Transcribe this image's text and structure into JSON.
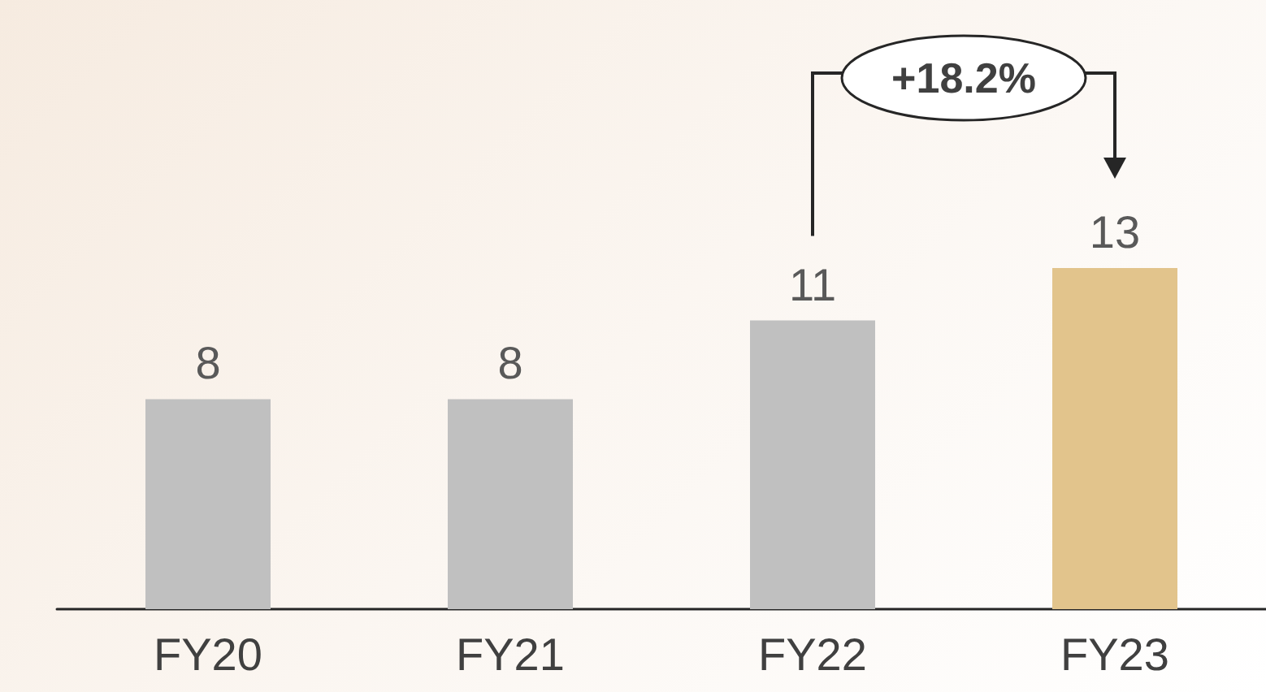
{
  "chart_data": {
    "type": "bar",
    "categories": [
      "FY20",
      "FY21",
      "FY22",
      "FY23"
    ],
    "values": [
      8,
      8,
      11,
      13
    ],
    "colors": [
      "#c0c0c0",
      "#c0c0c0",
      "#c0c0c0",
      "#e2c48c"
    ],
    "data_labels": true,
    "annotations": [
      "+18.2%"
    ]
  }
}
